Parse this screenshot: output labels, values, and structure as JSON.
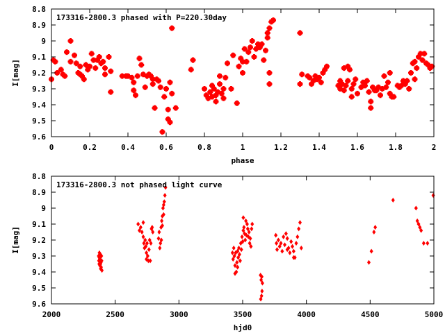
{
  "chart_data": [
    {
      "type": "scatter",
      "title": "173316-2800.3 phased with P=220.30day",
      "xlabel": "phase",
      "ylabel": "I[mag]",
      "xlim": [
        0,
        2
      ],
      "ylim": [
        9.6,
        8.8
      ],
      "y_inverted": true,
      "grid": false,
      "marker_color": "#ff0000",
      "xticks": [
        "0",
        "0.2",
        "0.4",
        "0.6",
        "0.8",
        "1",
        "1.2",
        "1.4",
        "1.6",
        "1.8",
        "2"
      ],
      "yticks": [
        "8.8",
        "8.9",
        "9",
        "9.1",
        "9.2",
        "9.3",
        "9.4",
        "9.5",
        "9.6"
      ],
      "points": [
        [
          0.0,
          9.24
        ],
        [
          0.01,
          9.12
        ],
        [
          0.02,
          9.13
        ],
        [
          0.03,
          9.2
        ],
        [
          0.05,
          9.18
        ],
        [
          0.06,
          9.21
        ],
        [
          0.07,
          9.22
        ],
        [
          0.08,
          9.07
        ],
        [
          0.1,
          9.13
        ],
        [
          0.1,
          9.0
        ],
        [
          0.12,
          9.09
        ],
        [
          0.13,
          9.14
        ],
        [
          0.14,
          9.2
        ],
        [
          0.15,
          9.16
        ],
        [
          0.15,
          9.21
        ],
        [
          0.16,
          9.22
        ],
        [
          0.17,
          9.24
        ],
        [
          0.18,
          9.15
        ],
        [
          0.19,
          9.18
        ],
        [
          0.2,
          9.16
        ],
        [
          0.21,
          9.08
        ],
        [
          0.22,
          9.12
        ],
        [
          0.23,
          9.17
        ],
        [
          0.24,
          9.12
        ],
        [
          0.25,
          9.1
        ],
        [
          0.26,
          9.14
        ],
        [
          0.27,
          9.13
        ],
        [
          0.28,
          9.17
        ],
        [
          0.28,
          9.21
        ],
        [
          0.3,
          9.1
        ],
        [
          0.31,
          9.19
        ],
        [
          0.31,
          9.32
        ],
        [
          0.37,
          9.22
        ],
        [
          0.39,
          9.22
        ],
        [
          0.4,
          9.22
        ],
        [
          0.42,
          9.23
        ],
        [
          0.43,
          9.26
        ],
        [
          0.43,
          9.31
        ],
        [
          0.44,
          9.34
        ],
        [
          0.45,
          9.22
        ],
        [
          0.46,
          9.11
        ],
        [
          0.47,
          9.15
        ],
        [
          0.48,
          9.21
        ],
        [
          0.49,
          9.29
        ],
        [
          0.5,
          9.22
        ],
        [
          0.51,
          9.21
        ],
        [
          0.52,
          9.22
        ],
        [
          0.53,
          9.24
        ],
        [
          0.53,
          9.27
        ],
        [
          0.54,
          9.42
        ],
        [
          0.55,
          9.24
        ],
        [
          0.56,
          9.25
        ],
        [
          0.57,
          9.29
        ],
        [
          0.58,
          9.57
        ],
        [
          0.59,
          9.35
        ],
        [
          0.6,
          9.3
        ],
        [
          0.61,
          9.43
        ],
        [
          0.61,
          9.49
        ],
        [
          0.62,
          9.51
        ],
        [
          0.62,
          9.26
        ],
        [
          0.63,
          9.33
        ],
        [
          0.63,
          8.92
        ],
        [
          0.65,
          9.42
        ],
        [
          0.73,
          9.18
        ],
        [
          0.74,
          9.12
        ],
        [
          0.8,
          9.3
        ],
        [
          0.81,
          9.34
        ],
        [
          0.82,
          9.36
        ],
        [
          0.83,
          9.32
        ],
        [
          0.84,
          9.28
        ],
        [
          0.84,
          9.35
        ],
        [
          0.85,
          9.3
        ],
        [
          0.86,
          9.34
        ],
        [
          0.86,
          9.38
        ],
        [
          0.87,
          9.32
        ],
        [
          0.88,
          9.27
        ],
        [
          0.88,
          9.22
        ],
        [
          0.89,
          9.33
        ],
        [
          0.9,
          9.3
        ],
        [
          0.9,
          9.36
        ],
        [
          0.91,
          9.23
        ],
        [
          0.92,
          9.14
        ],
        [
          0.94,
          9.3
        ],
        [
          0.95,
          9.09
        ],
        [
          0.97,
          9.39
        ],
        [
          0.98,
          9.16
        ],
        [
          0.99,
          9.11
        ],
        [
          1.0,
          9.13
        ],
        [
          1.0,
          9.2
        ],
        [
          1.01,
          9.05
        ],
        [
          1.02,
          9.13
        ],
        [
          1.03,
          9.07
        ],
        [
          1.04,
          9.04
        ],
        [
          1.05,
          9.0
        ],
        [
          1.06,
          9.1
        ],
        [
          1.07,
          9.05
        ],
        [
          1.08,
          9.02
        ],
        [
          1.09,
          9.04
        ],
        [
          1.1,
          9.02
        ],
        [
          1.11,
          9.12
        ],
        [
          1.12,
          9.06
        ],
        [
          1.13,
          8.98
        ],
        [
          1.13,
          8.95
        ],
        [
          1.14,
          8.92
        ],
        [
          1.14,
          9.2
        ],
        [
          1.15,
          8.88
        ],
        [
          1.16,
          8.87
        ],
        [
          1.14,
          9.27
        ],
        [
          1.3,
          9.27
        ],
        [
          1.31,
          9.21
        ],
        [
          1.3,
          8.95
        ],
        [
          1.34,
          9.22
        ],
        [
          1.35,
          9.23
        ],
        [
          1.36,
          9.27
        ],
        [
          1.37,
          9.25
        ],
        [
          1.38,
          9.22
        ],
        [
          1.39,
          9.24
        ],
        [
          1.4,
          9.23
        ],
        [
          1.41,
          9.26
        ],
        [
          1.42,
          9.2
        ],
        [
          1.43,
          9.18
        ],
        [
          1.44,
          9.16
        ],
        [
          1.5,
          9.28
        ],
        [
          1.51,
          9.3
        ],
        [
          1.51,
          9.25
        ],
        [
          1.52,
          9.27
        ],
        [
          1.53,
          9.31
        ],
        [
          1.53,
          9.17
        ],
        [
          1.54,
          9.28
        ],
        [
          1.55,
          9.25
        ],
        [
          1.55,
          9.16
        ],
        [
          1.56,
          9.18
        ],
        [
          1.57,
          9.3
        ],
        [
          1.57,
          9.35
        ],
        [
          1.58,
          9.27
        ],
        [
          1.59,
          9.24
        ],
        [
          1.6,
          9.33
        ],
        [
          1.62,
          9.29
        ],
        [
          1.63,
          9.26
        ],
        [
          1.64,
          9.28
        ],
        [
          1.65,
          9.25
        ],
        [
          1.66,
          9.32
        ],
        [
          1.67,
          9.38
        ],
        [
          1.67,
          9.42
        ],
        [
          1.68,
          9.29
        ],
        [
          1.69,
          9.31
        ],
        [
          1.7,
          9.31
        ],
        [
          1.71,
          9.29
        ],
        [
          1.72,
          9.34
        ],
        [
          1.73,
          9.3
        ],
        [
          1.74,
          9.22
        ],
        [
          1.75,
          9.29
        ],
        [
          1.76,
          9.26
        ],
        [
          1.77,
          9.33
        ],
        [
          1.77,
          9.2
        ],
        [
          1.78,
          9.35
        ],
        [
          1.79,
          9.35
        ],
        [
          1.81,
          9.28
        ],
        [
          1.82,
          9.29
        ],
        [
          1.83,
          9.28
        ],
        [
          1.84,
          9.25
        ],
        [
          1.85,
          9.27
        ],
        [
          1.86,
          9.25
        ],
        [
          1.87,
          9.3
        ],
        [
          1.88,
          9.2
        ],
        [
          1.89,
          9.14
        ],
        [
          1.9,
          9.13
        ],
        [
          1.9,
          9.24
        ],
        [
          1.91,
          9.17
        ],
        [
          1.92,
          9.1
        ],
        [
          1.93,
          9.08
        ],
        [
          1.94,
          9.12
        ],
        [
          1.95,
          9.08
        ],
        [
          1.96,
          9.14
        ],
        [
          1.97,
          9.15
        ],
        [
          1.98,
          9.17
        ],
        [
          1.99,
          9.16
        ]
      ]
    },
    {
      "type": "scatter",
      "title": "173316-2800.3 not phased light curve",
      "xlabel": "hjd0",
      "ylabel": "I[mag]",
      "xlim": [
        2000,
        5000
      ],
      "ylim": [
        9.6,
        8.8
      ],
      "y_inverted": true,
      "grid": false,
      "marker_color": "#ff0000",
      "xticks": [
        "2000",
        "2500",
        "3000",
        "3500",
        "4000",
        "4500",
        "5000"
      ],
      "yticks": [
        "8.8",
        "8.9",
        "9",
        "9.1",
        "9.2",
        "9.3",
        "9.4",
        "9.5",
        "9.6"
      ],
      "points": [
        [
          2370,
          9.3
        ],
        [
          2372,
          9.33
        ],
        [
          2374,
          9.35
        ],
        [
          2376,
          9.28
        ],
        [
          2378,
          9.32
        ],
        [
          2380,
          9.36
        ],
        [
          2382,
          9.31
        ],
        [
          2384,
          9.29
        ],
        [
          2386,
          9.38
        ],
        [
          2388,
          9.34
        ],
        [
          2390,
          9.37
        ],
        [
          2392,
          9.3
        ],
        [
          2394,
          9.33
        ],
        [
          2396,
          9.39
        ],
        [
          2375,
          9.31
        ],
        [
          2385,
          9.35
        ],
        [
          2680,
          9.1
        ],
        [
          2690,
          9.14
        ],
        [
          2700,
          9.12
        ],
        [
          2710,
          9.15
        ],
        [
          2720,
          9.18
        ],
        [
          2725,
          9.22
        ],
        [
          2730,
          9.25
        ],
        [
          2735,
          9.2
        ],
        [
          2740,
          9.24
        ],
        [
          2745,
          9.28
        ],
        [
          2750,
          9.22
        ],
        [
          2755,
          9.3
        ],
        [
          2760,
          9.33
        ],
        [
          2765,
          9.26
        ],
        [
          2770,
          9.2
        ],
        [
          2775,
          9.33
        ],
        [
          2780,
          9.22
        ],
        [
          2785,
          9.13
        ],
        [
          2790,
          9.12
        ],
        [
          2795,
          9.15
        ],
        [
          2720,
          9.09
        ],
        [
          2745,
          9.32
        ],
        [
          2840,
          9.19
        ],
        [
          2845,
          9.15
        ],
        [
          2850,
          9.25
        ],
        [
          2855,
          9.22
        ],
        [
          2860,
          9.12
        ],
        [
          2865,
          9.08
        ],
        [
          2870,
          9.05
        ],
        [
          2875,
          9.0
        ],
        [
          2880,
          8.98
        ],
        [
          2885,
          8.96
        ],
        [
          2890,
          8.92
        ],
        [
          2895,
          8.87
        ],
        [
          2870,
          9.11
        ],
        [
          2880,
          9.04
        ],
        [
          2862,
          9.2
        ],
        [
          3420,
          9.28
        ],
        [
          3425,
          9.32
        ],
        [
          3430,
          9.25
        ],
        [
          3435,
          9.3
        ],
        [
          3440,
          9.36
        ],
        [
          3445,
          9.28
        ],
        [
          3450,
          9.4
        ],
        [
          3455,
          9.34
        ],
        [
          3460,
          9.27
        ],
        [
          3465,
          9.31
        ],
        [
          3470,
          9.25
        ],
        [
          3475,
          9.29
        ],
        [
          3480,
          9.33
        ],
        [
          3485,
          9.22
        ],
        [
          3490,
          9.26
        ],
        [
          3495,
          9.18
        ],
        [
          3500,
          9.21
        ],
        [
          3505,
          9.14
        ],
        [
          3510,
          9.12
        ],
        [
          3515,
          9.16
        ],
        [
          3520,
          9.2
        ],
        [
          3525,
          9.08
        ],
        [
          3530,
          9.17
        ],
        [
          3535,
          9.1
        ],
        [
          3540,
          9.13
        ],
        [
          3545,
          9.18
        ],
        [
          3550,
          9.15
        ],
        [
          3555,
          9.22
        ],
        [
          3560,
          9.19
        ],
        [
          3565,
          9.24
        ],
        [
          3570,
          9.13
        ],
        [
          3575,
          9.1
        ],
        [
          3440,
          9.41
        ],
        [
          3505,
          9.06
        ],
        [
          3460,
          9.37
        ],
        [
          3640,
          9.42
        ],
        [
          3645,
          9.45
        ],
        [
          3650,
          9.43
        ],
        [
          3655,
          9.47
        ],
        [
          3648,
          9.55
        ],
        [
          3652,
          9.52
        ],
        [
          3642,
          9.57
        ],
        [
          3760,
          9.17
        ],
        [
          3765,
          9.22
        ],
        [
          3770,
          9.26
        ],
        [
          3780,
          9.2
        ],
        [
          3790,
          9.24
        ],
        [
          3800,
          9.22
        ],
        [
          3810,
          9.27
        ],
        [
          3820,
          9.18
        ],
        [
          3830,
          9.23
        ],
        [
          3840,
          9.16
        ],
        [
          3850,
          9.19
        ],
        [
          3860,
          9.25
        ],
        [
          3870,
          9.28
        ],
        [
          3880,
          9.21
        ],
        [
          3890,
          9.24
        ],
        [
          3900,
          9.27
        ],
        [
          3910,
          9.31
        ],
        [
          3920,
          9.22
        ],
        [
          3930,
          9.18
        ],
        [
          3940,
          9.13
        ],
        [
          3950,
          9.09
        ],
        [
          3960,
          9.25
        ],
        [
          3900,
          9.31
        ],
        [
          3850,
          9.26
        ],
        [
          4490,
          9.34
        ],
        [
          4510,
          9.27
        ],
        [
          4530,
          9.15
        ],
        [
          4540,
          9.12
        ],
        [
          4680,
          8.95
        ],
        [
          4860,
          9.0
        ],
        [
          4870,
          9.08
        ],
        [
          4880,
          9.1
        ],
        [
          4890,
          9.12
        ],
        [
          4900,
          9.14
        ],
        [
          4920,
          9.22
        ],
        [
          4950,
          9.22
        ],
        [
          4995,
          8.92
        ]
      ]
    }
  ]
}
